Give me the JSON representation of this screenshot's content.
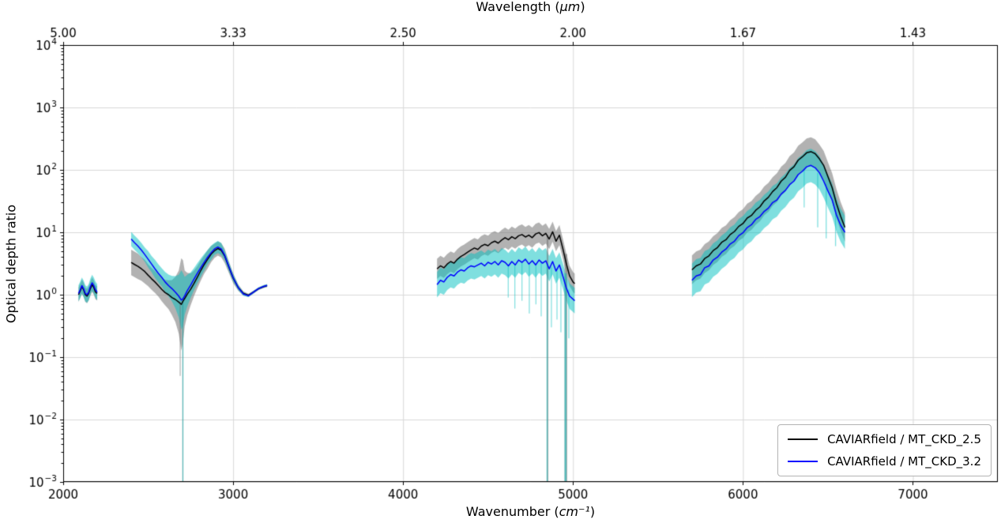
{
  "chart_data": {
    "type": "line",
    "title": "",
    "top_axis": {
      "label_prefix": "Wavelength (",
      "label_unit": "μm",
      "label_suffix": ")"
    },
    "bottom_axis": {
      "label_prefix": "Wavenumber (",
      "label_unit": "cm⁻¹",
      "label_suffix": ")"
    },
    "ylabel": "Optical depth ratio",
    "xlim": [
      2000,
      7500
    ],
    "ylog_range": [
      -3,
      4
    ],
    "grid": true,
    "legend_position": "lower right",
    "xticks": [
      2000,
      3000,
      4000,
      5000,
      6000,
      7000
    ],
    "xtick_labels": [
      "2000",
      "3000",
      "4000",
      "5000",
      "6000",
      "7000"
    ],
    "top_ticks": [
      {
        "wavenumber": 2000,
        "label": "5.00"
      },
      {
        "wavenumber": 3000,
        "label": "3.33"
      },
      {
        "wavenumber": 4000,
        "label": "2.50"
      },
      {
        "wavenumber": 5000,
        "label": "2.00"
      },
      {
        "wavenumber": 6000,
        "label": "1.67"
      },
      {
        "wavenumber": 7000,
        "label": "1.43"
      }
    ],
    "ytick_exponents": [
      -3,
      -2,
      -1,
      0,
      1,
      2,
      3,
      4
    ],
    "colors": {
      "black_line": "#000000",
      "blue_line": "#0000ff",
      "black_band": "rgba(115,115,115,0.55)",
      "blue_band": "rgba(0,191,191,0.50)",
      "grid": "#d9d9d9",
      "frame": "#000000"
    },
    "legend": [
      {
        "label": "CAVIARfield / MT_CKD_2.5",
        "color": "#000000"
      },
      {
        "label": "CAVIARfield / MT_CKD_3.2",
        "color": "#0000ff"
      }
    ],
    "segments": [
      {
        "x": [
          2090,
          2100,
          2110,
          2120,
          2130,
          2140,
          2150,
          2160,
          2170,
          2180,
          2190,
          2200
        ],
        "black": [
          1.0,
          1.15,
          1.35,
          1.2,
          1.0,
          0.95,
          1.05,
          1.25,
          1.45,
          1.3,
          1.1,
          1.05
        ],
        "blue": [
          1.05,
          1.2,
          1.4,
          1.25,
          1.05,
          1.0,
          1.1,
          1.35,
          1.55,
          1.4,
          1.2,
          1.1
        ],
        "spread_black": 1.3,
        "spread_blue": 1.35
      },
      {
        "x": [
          2400,
          2420,
          2440,
          2460,
          2480,
          2500,
          2520,
          2540,
          2560,
          2580,
          2600,
          2620,
          2640,
          2660,
          2680,
          2695,
          2705,
          2715,
          2730,
          2750,
          2770,
          2790,
          2810,
          2830,
          2850,
          2870,
          2890,
          2910,
          2930,
          2950,
          2970,
          3000,
          3030,
          3060,
          3090,
          3120,
          3150,
          3180,
          3200
        ],
        "black": [
          3.3,
          3.05,
          2.85,
          2.6,
          2.35,
          2.05,
          1.8,
          1.6,
          1.4,
          1.22,
          1.08,
          1.0,
          0.9,
          0.84,
          0.76,
          0.7,
          0.79,
          0.87,
          1.02,
          1.22,
          1.52,
          1.92,
          2.45,
          3.05,
          3.7,
          4.45,
          5.05,
          5.5,
          5.15,
          4.2,
          3.0,
          1.85,
          1.3,
          1.05,
          0.98,
          1.1,
          1.25,
          1.35,
          1.4
        ],
        "blue": [
          7.8,
          6.8,
          6.0,
          5.2,
          4.4,
          3.7,
          3.1,
          2.6,
          2.2,
          1.9,
          1.6,
          1.4,
          1.25,
          1.1,
          0.95,
          0.82,
          0.86,
          0.96,
          1.16,
          1.42,
          1.78,
          2.22,
          2.72,
          3.32,
          4.0,
          4.7,
          5.4,
          5.8,
          5.4,
          4.3,
          3.05,
          1.87,
          1.3,
          1.03,
          0.96,
          1.1,
          1.26,
          1.36,
          1.41
        ],
        "spread_black": [
          1.6,
          1.6,
          1.6,
          1.55,
          1.55,
          1.5,
          1.5,
          1.5,
          1.5,
          1.55,
          1.6,
          1.7,
          1.9,
          2.3,
          3.2,
          5.5,
          4.5,
          2.8,
          2.2,
          1.8,
          1.6,
          1.5,
          1.45,
          1.4,
          1.4,
          1.35,
          1.3,
          1.3,
          1.3,
          1.3,
          1.25,
          1.2,
          1.12,
          1.08,
          1.06,
          1.05,
          1.05,
          1.05,
          1.05
        ],
        "spread_blue": [
          1.3,
          1.3,
          1.3,
          1.3,
          1.3,
          1.35,
          1.35,
          1.4,
          1.4,
          1.4,
          1.45,
          1.5,
          1.6,
          1.8,
          2.2,
          3.0,
          2.6,
          2.0,
          1.8,
          1.6,
          1.5,
          1.45,
          1.4,
          1.35,
          1.3,
          1.3,
          1.25,
          1.25,
          1.25,
          1.2,
          1.18,
          1.15,
          1.1,
          1.07,
          1.05,
          1.05,
          1.05,
          1.05,
          1.05
        ]
      },
      {
        "x": [
          4200,
          4220,
          4240,
          4260,
          4280,
          4300,
          4320,
          4340,
          4360,
          4380,
          4400,
          4420,
          4440,
          4460,
          4480,
          4500,
          4520,
          4540,
          4560,
          4580,
          4600,
          4620,
          4640,
          4660,
          4680,
          4700,
          4720,
          4740,
          4760,
          4780,
          4800,
          4820,
          4840,
          4860,
          4880,
          4900,
          4920,
          4940,
          4960,
          4980,
          5000,
          5010
        ],
        "black": [
          2.6,
          2.9,
          2.7,
          3.1,
          3.4,
          3.2,
          3.7,
          4.1,
          4.4,
          4.8,
          5.2,
          5.6,
          5.3,
          6.0,
          6.4,
          6.1,
          6.8,
          7.2,
          6.7,
          7.5,
          8.2,
          7.6,
          8.5,
          7.9,
          8.8,
          9.2,
          8.4,
          9.0,
          8.2,
          9.4,
          9.9,
          8.8,
          9.6,
          7.8,
          10.2,
          7.2,
          9.0,
          5.5,
          3.2,
          2.0,
          1.6,
          1.5
        ],
        "blue": [
          1.45,
          1.7,
          1.6,
          1.9,
          2.1,
          2.0,
          2.3,
          2.5,
          2.4,
          2.7,
          2.9,
          2.8,
          3.0,
          3.2,
          2.9,
          3.3,
          3.1,
          3.4,
          3.0,
          3.5,
          3.3,
          2.9,
          3.4,
          3.0,
          3.6,
          3.3,
          3.7,
          3.1,
          3.5,
          3.0,
          3.6,
          3.2,
          3.5,
          2.6,
          3.4,
          2.4,
          3.0,
          2.0,
          1.3,
          0.95,
          0.85,
          0.8
        ],
        "spread_black": 1.45,
        "spread_blue": 1.6
      },
      {
        "x": [
          5700,
          5725,
          5750,
          5775,
          5800,
          5825,
          5850,
          5875,
          5900,
          5925,
          5950,
          5975,
          6000,
          6025,
          6050,
          6075,
          6100,
          6125,
          6150,
          6175,
          6200,
          6225,
          6250,
          6275,
          6300,
          6325,
          6350,
          6375,
          6400,
          6425,
          6450,
          6475,
          6500,
          6525,
          6550,
          6575,
          6600
        ],
        "black": [
          2.5,
          2.9,
          3.1,
          3.8,
          4.2,
          5.1,
          5.7,
          6.9,
          7.6,
          9.2,
          10.3,
          12.4,
          13.8,
          16.9,
          18.6,
          22.5,
          25.6,
          31.8,
          36.4,
          45,
          52,
          66,
          76,
          98,
          112,
          143,
          162,
          188,
          196,
          182,
          150,
          118,
          78,
          52,
          29,
          18,
          12
        ],
        "blue": [
          1.7,
          2.0,
          2.1,
          2.7,
          2.9,
          3.6,
          4.0,
          4.8,
          5.4,
          6.5,
          7.2,
          8.8,
          9.8,
          11.9,
          13.2,
          16.1,
          17.9,
          21.6,
          24.4,
          30,
          33,
          41,
          47,
          58,
          66,
          84,
          95,
          112,
          118,
          108,
          90,
          66,
          46,
          33,
          19,
          13,
          10
        ],
        "spread_black": 1.7,
        "spread_blue": 1.85
      }
    ],
    "band_spikes": [
      {
        "x": 2688,
        "w": 5,
        "series": "black",
        "top": 0.78,
        "lo": 0.05
      },
      {
        "x": 2704,
        "w": 6,
        "series": "black",
        "top": 0.8,
        "lo": 0.0005
      },
      {
        "x": 2704,
        "w": 5,
        "series": "blue",
        "top": 0.9,
        "lo": 0.0005
      },
      {
        "x": 4618,
        "w": 4,
        "series": "blue",
        "top": 3.0,
        "lo": 0.9
      },
      {
        "x": 4657,
        "w": 4,
        "series": "blue",
        "top": 3.1,
        "lo": 0.6
      },
      {
        "x": 4699,
        "w": 4,
        "series": "blue",
        "top": 3.3,
        "lo": 0.8
      },
      {
        "x": 4742,
        "w": 4,
        "series": "blue",
        "top": 3.1,
        "lo": 0.5
      },
      {
        "x": 4781,
        "w": 4,
        "series": "blue",
        "top": 3.2,
        "lo": 0.7
      },
      {
        "x": 4812,
        "w": 4,
        "series": "blue",
        "top": 3.3,
        "lo": 0.45
      },
      {
        "x": 4850,
        "w": 10,
        "series": "black",
        "top": 9.0,
        "lo": 0.0005
      },
      {
        "x": 4848,
        "w": 7,
        "series": "blue",
        "top": 3.2,
        "lo": 0.0005
      },
      {
        "x": 4872,
        "w": 4,
        "series": "blue",
        "top": 2.8,
        "lo": 0.3
      },
      {
        "x": 4905,
        "w": 4,
        "series": "blue",
        "top": 2.6,
        "lo": 0.4
      },
      {
        "x": 4928,
        "w": 4,
        "series": "blue",
        "top": 2.7,
        "lo": 0.25
      },
      {
        "x": 4958,
        "w": 16,
        "series": "black",
        "top": 4.5,
        "lo": 0.0005
      },
      {
        "x": 4956,
        "w": 12,
        "series": "blue",
        "top": 2.2,
        "lo": 0.0005
      },
      {
        "x": 4975,
        "w": 5,
        "series": "blue",
        "top": 1.2,
        "lo": 0.2
      },
      {
        "x": 6360,
        "w": 5,
        "series": "blue",
        "top": 100,
        "lo": 25
      },
      {
        "x": 6440,
        "w": 6,
        "series": "blue",
        "top": 90,
        "lo": 12
      },
      {
        "x": 6490,
        "w": 6,
        "series": "blue",
        "top": 60,
        "lo": 8
      },
      {
        "x": 6545,
        "w": 6,
        "series": "blue",
        "top": 20,
        "lo": 6
      }
    ]
  }
}
